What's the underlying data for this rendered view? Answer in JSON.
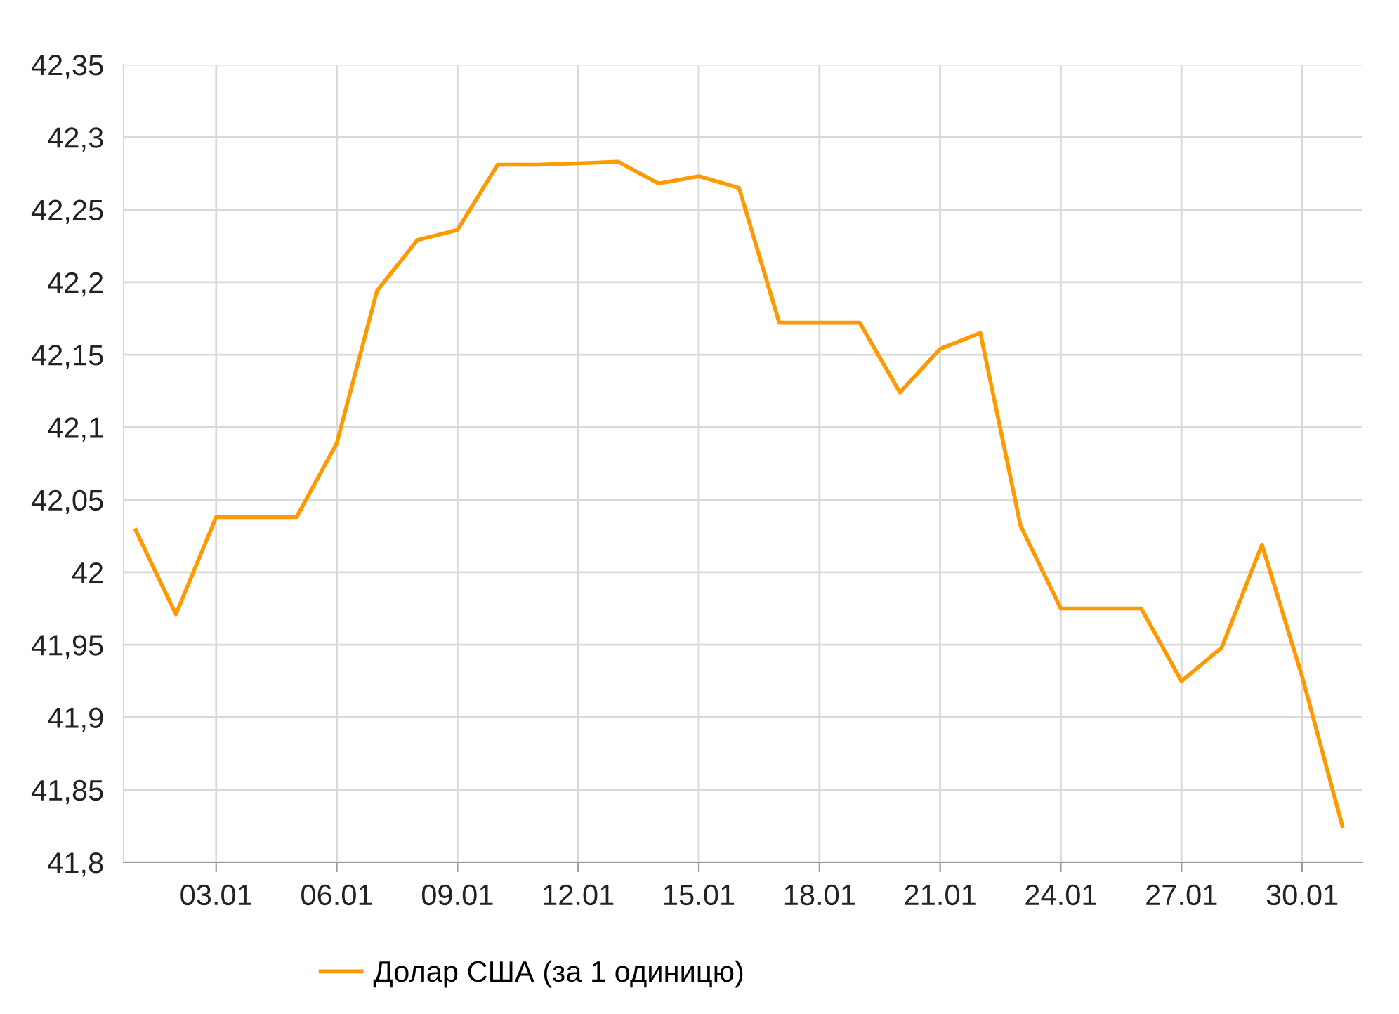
{
  "chart_data": {
    "type": "line",
    "categories": [
      null,
      null,
      "03.01",
      null,
      null,
      "06.01",
      null,
      null,
      "09.01",
      null,
      null,
      "12.01",
      null,
      null,
      "15.01",
      null,
      null,
      "18.01",
      null,
      null,
      "21.01",
      null,
      null,
      "24.01",
      null,
      null,
      "27.01",
      null,
      null,
      "30.01",
      null
    ],
    "series": [
      {
        "name": "Долар США (за 1 одиницю)",
        "color": "#ff9900",
        "values": [
          42.029,
          41.971,
          42.038,
          42.038,
          42.038,
          42.089,
          42.194,
          42.229,
          42.236,
          42.281,
          42.281,
          42.282,
          42.283,
          42.268,
          42.273,
          42.265,
          42.172,
          42.172,
          42.172,
          42.124,
          42.154,
          42.165,
          42.032,
          41.975,
          41.975,
          41.975,
          41.925,
          41.948,
          42.019,
          41.928,
          41.825
        ]
      }
    ],
    "ylim": [
      41.8,
      42.35
    ],
    "yticks": [
      {
        "value": 41.8,
        "label": "41,8"
      },
      {
        "value": 41.85,
        "label": "41,85"
      },
      {
        "value": 41.9,
        "label": "41,9"
      },
      {
        "value": 41.95,
        "label": "41,95"
      },
      42,
      {
        "value": 42.05,
        "label": "42,05"
      },
      {
        "value": 42.1,
        "label": "42,1"
      },
      {
        "value": 42.15,
        "label": "42,15"
      },
      {
        "value": 42.2,
        "label": "42,2"
      },
      {
        "value": 42.25,
        "label": "42,25"
      },
      {
        "value": 42.3,
        "label": "42,3"
      },
      {
        "value": 42.35,
        "label": "42,35"
      }
    ],
    "grid": true,
    "legend": "bottom",
    "marker": "none",
    "line_style": "solid"
  }
}
